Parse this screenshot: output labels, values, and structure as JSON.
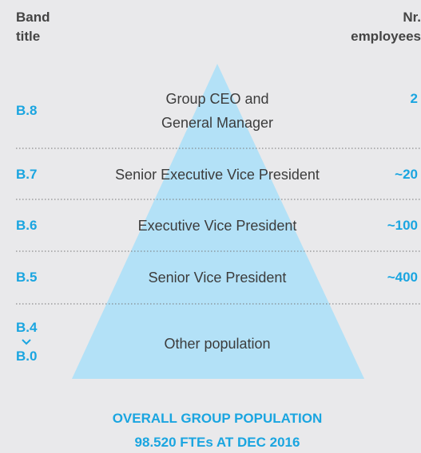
{
  "header": {
    "band_title": [
      "Band",
      "title"
    ],
    "employees_title": [
      "Nr.",
      "employees"
    ]
  },
  "rows": [
    {
      "band": "B.8",
      "label": [
        "Group CEO and",
        "General Manager"
      ],
      "employees": "2"
    },
    {
      "band": "B.7",
      "label": [
        "Senior Executive Vice President"
      ],
      "employees": "~20"
    },
    {
      "band": "B.6",
      "label": [
        "Executive Vice President"
      ],
      "employees": "~100"
    },
    {
      "band": "B.5",
      "label": [
        "Senior Vice President"
      ],
      "employees": "~400"
    },
    {
      "band": "B.4",
      "band_end": "B.0",
      "label": [
        "Other population"
      ]
    }
  ],
  "footer": [
    "OVERALL GROUP POPULATION",
    "98.520 FTEs AT DEC 2016"
  ]
}
